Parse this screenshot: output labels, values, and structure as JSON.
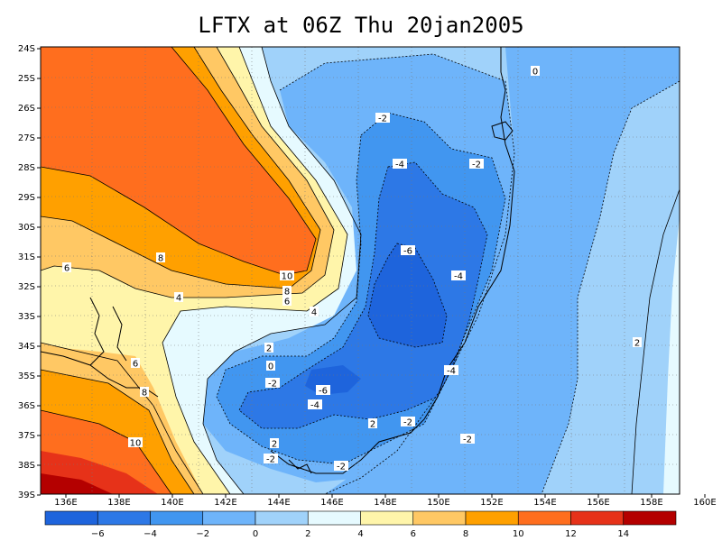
{
  "title": "LFTX at 06Z Thu 20jan2005",
  "map": {
    "lon_labels": [
      "136E",
      "138E",
      "140E",
      "142E",
      "144E",
      "146E",
      "148E",
      "150E",
      "152E",
      "154E",
      "156E",
      "158E",
      "160E"
    ],
    "lat_labels": [
      "24S",
      "25S",
      "26S",
      "27S",
      "28S",
      "29S",
      "30S",
      "31S",
      "32S",
      "33S",
      "34S",
      "35S",
      "36S",
      "37S",
      "38S",
      "39S"
    ],
    "contour_labels": [
      "0",
      "-2",
      "-4",
      "-2",
      "-6",
      "-4",
      "-6",
      "-4",
      "-2",
      "-2",
      "-2",
      "-2",
      "-4",
      "2",
      "0",
      "-2",
      "2",
      "2",
      "4",
      "6",
      "8",
      "10",
      "8",
      "6",
      "4",
      "6",
      "8",
      "10",
      "2"
    ]
  },
  "colorbar": {
    "colors": [
      "#1e64dc",
      "#2d78e6",
      "#4196f0",
      "#6eb4fa",
      "#a0d2fa",
      "#e6faff",
      "#fff5aa",
      "#ffc864",
      "#ffa000",
      "#ff6e1e",
      "#e63219",
      "#b40000"
    ],
    "labels": [
      "-6",
      "-4",
      "-2",
      "0",
      "2",
      "4",
      "6",
      "8",
      "10",
      "12",
      "14"
    ]
  }
}
